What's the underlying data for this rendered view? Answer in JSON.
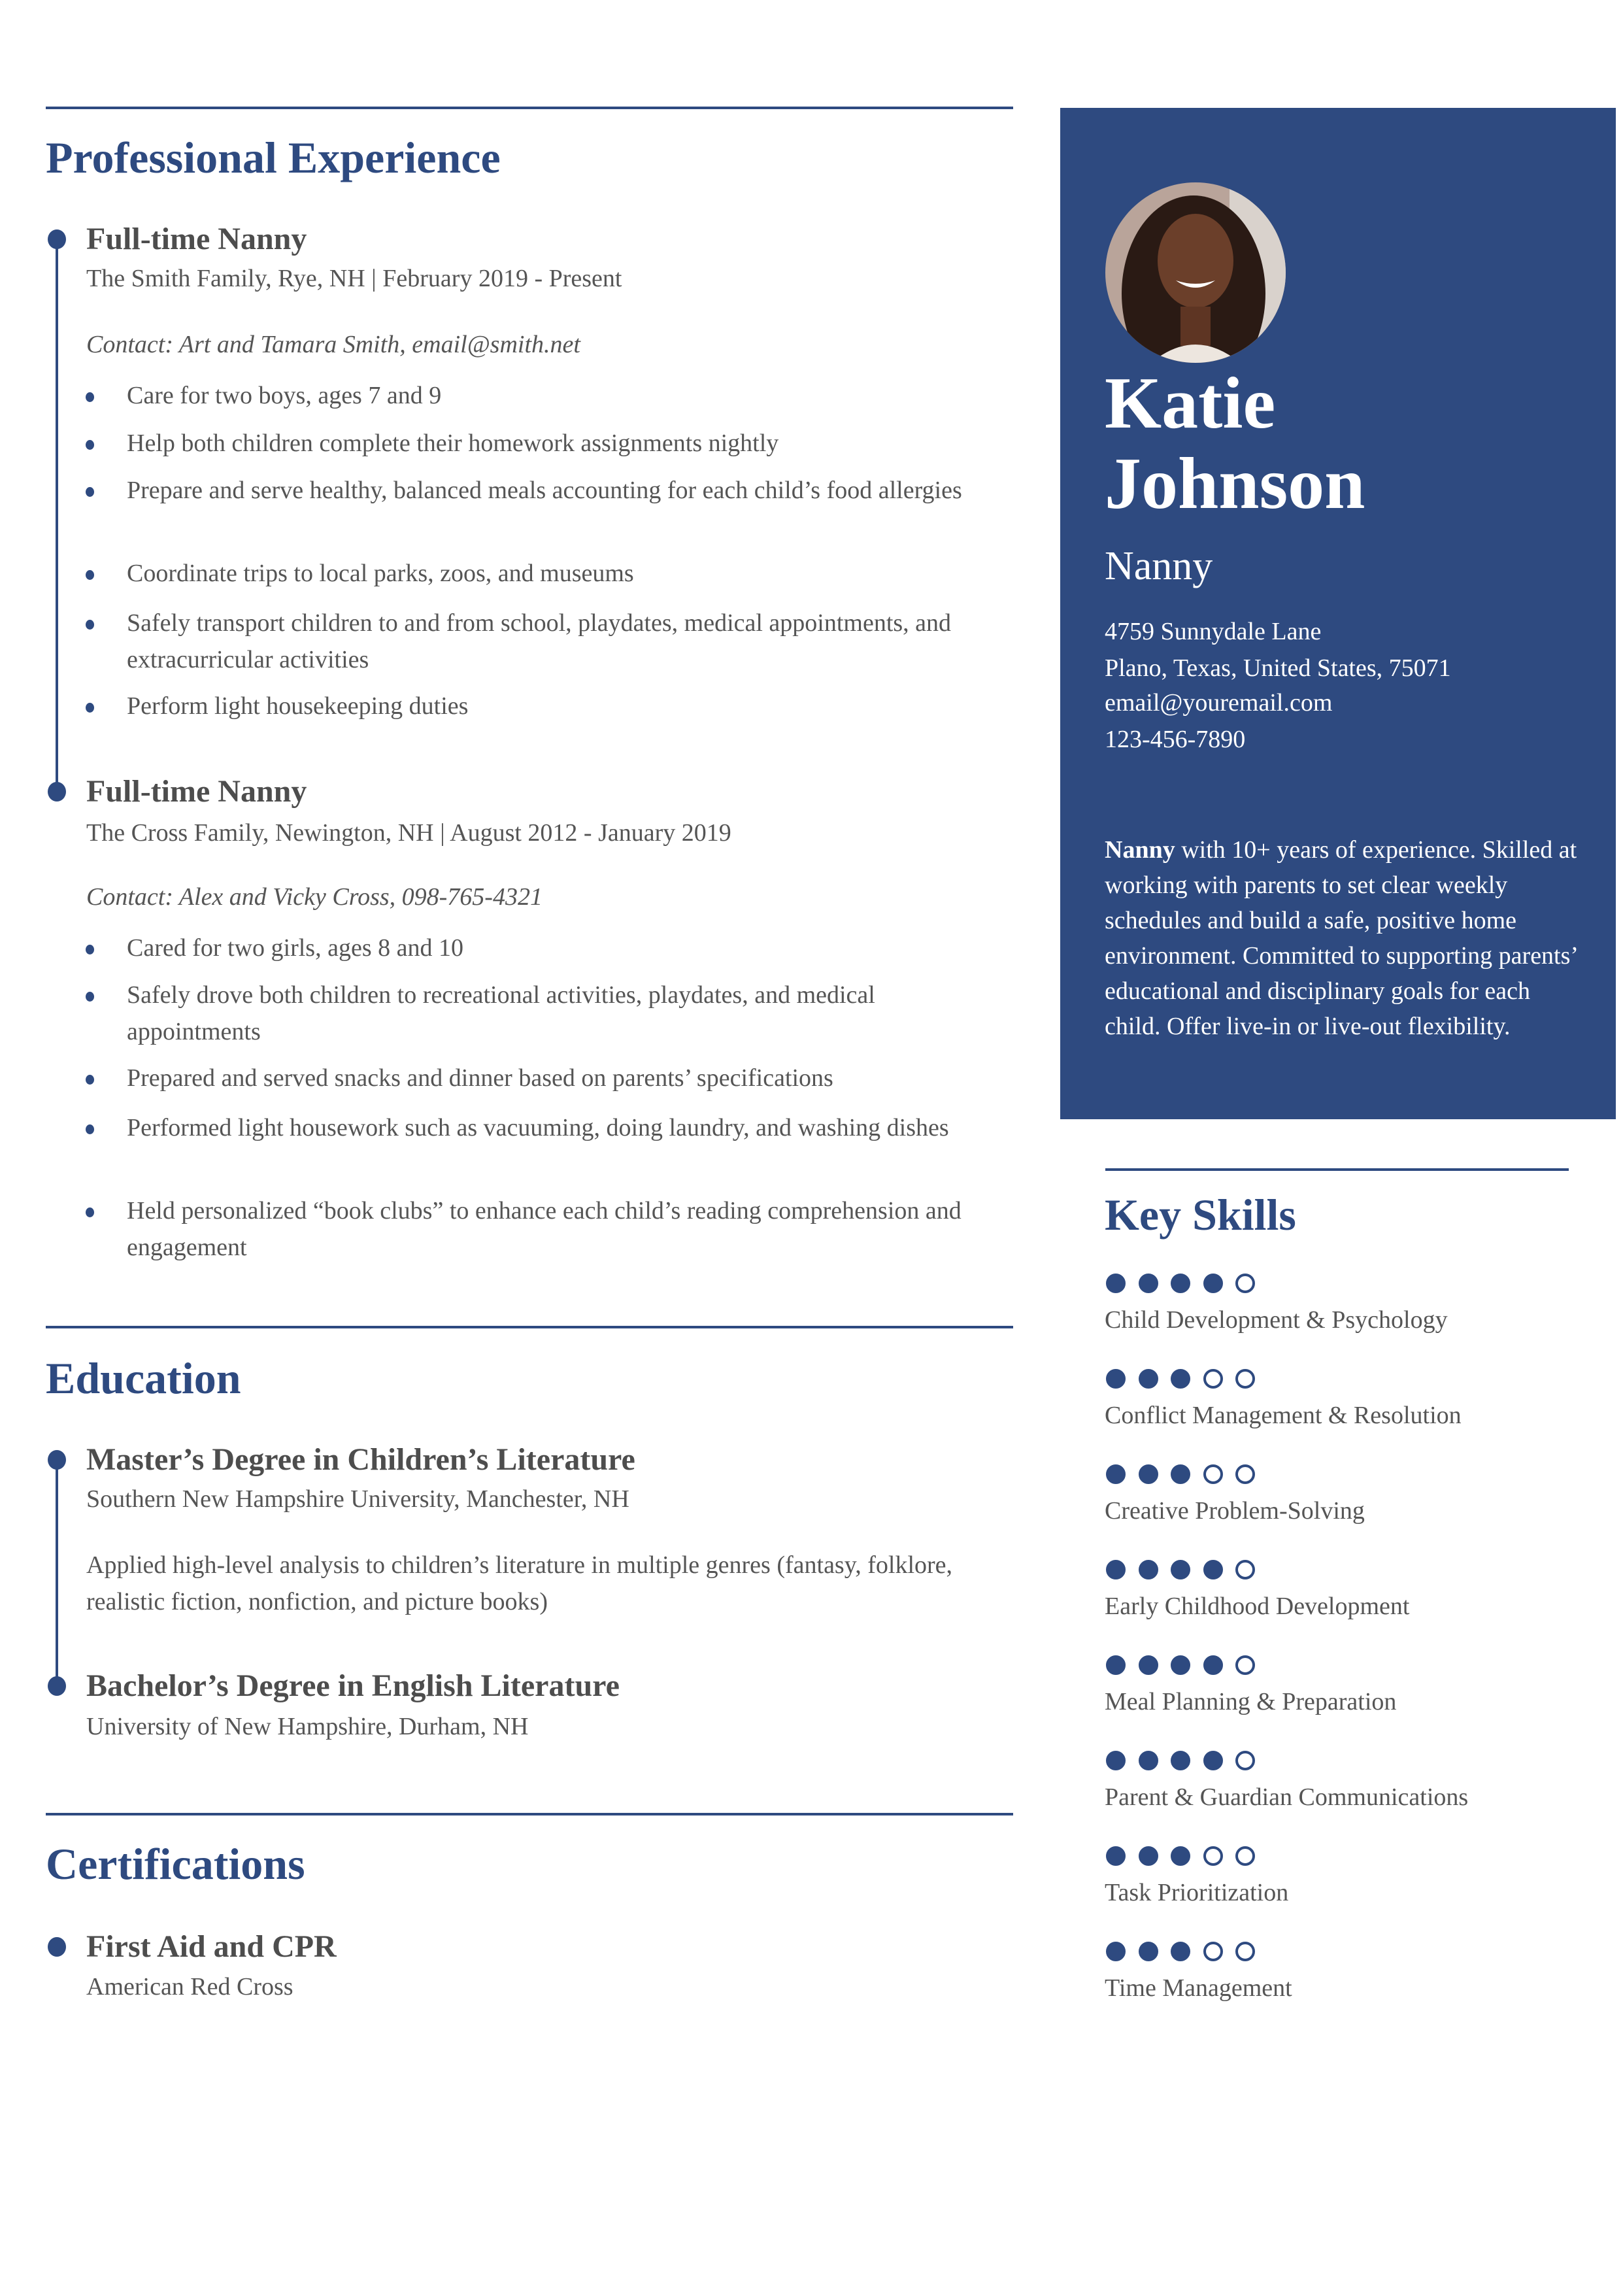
{
  "colors": {
    "accent": "#2e4a80",
    "text": "#555555",
    "sidebar_bg": "#2e4a80"
  },
  "header": {
    "first_name": "Katie",
    "last_name": "Johnson",
    "title": "Nanny",
    "contact": [
      "4759 Sunnydale Lane",
      "Plano, Texas, United States, 75071",
      "email@youremail.com",
      "123-456-7890"
    ],
    "summary_bold": "Nanny",
    "summary_rest": " with 10+ years of experience. Skilled at working  with parents to set clear weekly schedules and build a safe, positive  home environment. Committed to supporting parents’ educational and  disciplinary goals for each child. Offer live-in or live-out  flexibility."
  },
  "experience": {
    "heading": "Professional Experience",
    "jobs": [
      {
        "title": "Full-time Nanny",
        "meta": "The Smith Family, Rye, NH | February 2019 - Present",
        "contact": "Contact: Art and Tamara Smith, email@smith.net",
        "bullets": [
          "Care for two boys, ages 7 and 9",
          "Help both children complete their homework assignments nightly",
          "Prepare and serve healthy, balanced meals accounting for each child’s food allergies",
          "Coordinate trips to local parks, zoos, and museums",
          "Safely transport children to and from school, playdates, medical appointments, and extracurricular activities",
          "Perform light housekeeping duties"
        ]
      },
      {
        "title": "Full-time Nanny",
        "meta": "The Cross Family, Newington, NH | August 2012 - January 2019",
        "contact": "Contact: Alex and Vicky Cross, 098-765-4321",
        "bullets": [
          "Cared for two girls, ages 8 and 10",
          "Safely drove both children to recreational activities, playdates, and medical appointments",
          "Prepared and served snacks and dinner based on parents’ specifications",
          "Performed light housework such as vacuuming, doing laundry, and washing dishes",
          "Held personalized “book clubs” to enhance each child’s reading comprehension and engagement"
        ]
      }
    ]
  },
  "education": {
    "heading": "Education",
    "items": [
      {
        "degree": "Master’s Degree in Children’s Literature",
        "school": "Southern New Hampshire University, Manchester, NH",
        "desc": "Applied high-level analysis to children’s literature in multiple genres  (fantasy, folklore, realistic fiction, nonfiction, and picture books)"
      },
      {
        "degree": "Bachelor’s Degree in English Literature",
        "school": "University of New Hampshire, Durham, NH"
      }
    ]
  },
  "certifications": {
    "heading": "Certifications",
    "items": [
      {
        "name": "First Aid and CPR",
        "issuer": "American Red Cross"
      }
    ]
  },
  "skills": {
    "heading": "Key Skills",
    "max": 5,
    "items": [
      {
        "name": "Child Development & Psychology",
        "level": 4
      },
      {
        "name": "Conflict Management & Resolution",
        "level": 3
      },
      {
        "name": "Creative Problem-Solving",
        "level": 3
      },
      {
        "name": "Early Childhood Development",
        "level": 4
      },
      {
        "name": "Meal Planning & Preparation",
        "level": 4
      },
      {
        "name": "Parent & Guardian Communications",
        "level": 4
      },
      {
        "name": "Task Prioritization",
        "level": 3
      },
      {
        "name": "Time Management",
        "level": 3
      }
    ]
  }
}
